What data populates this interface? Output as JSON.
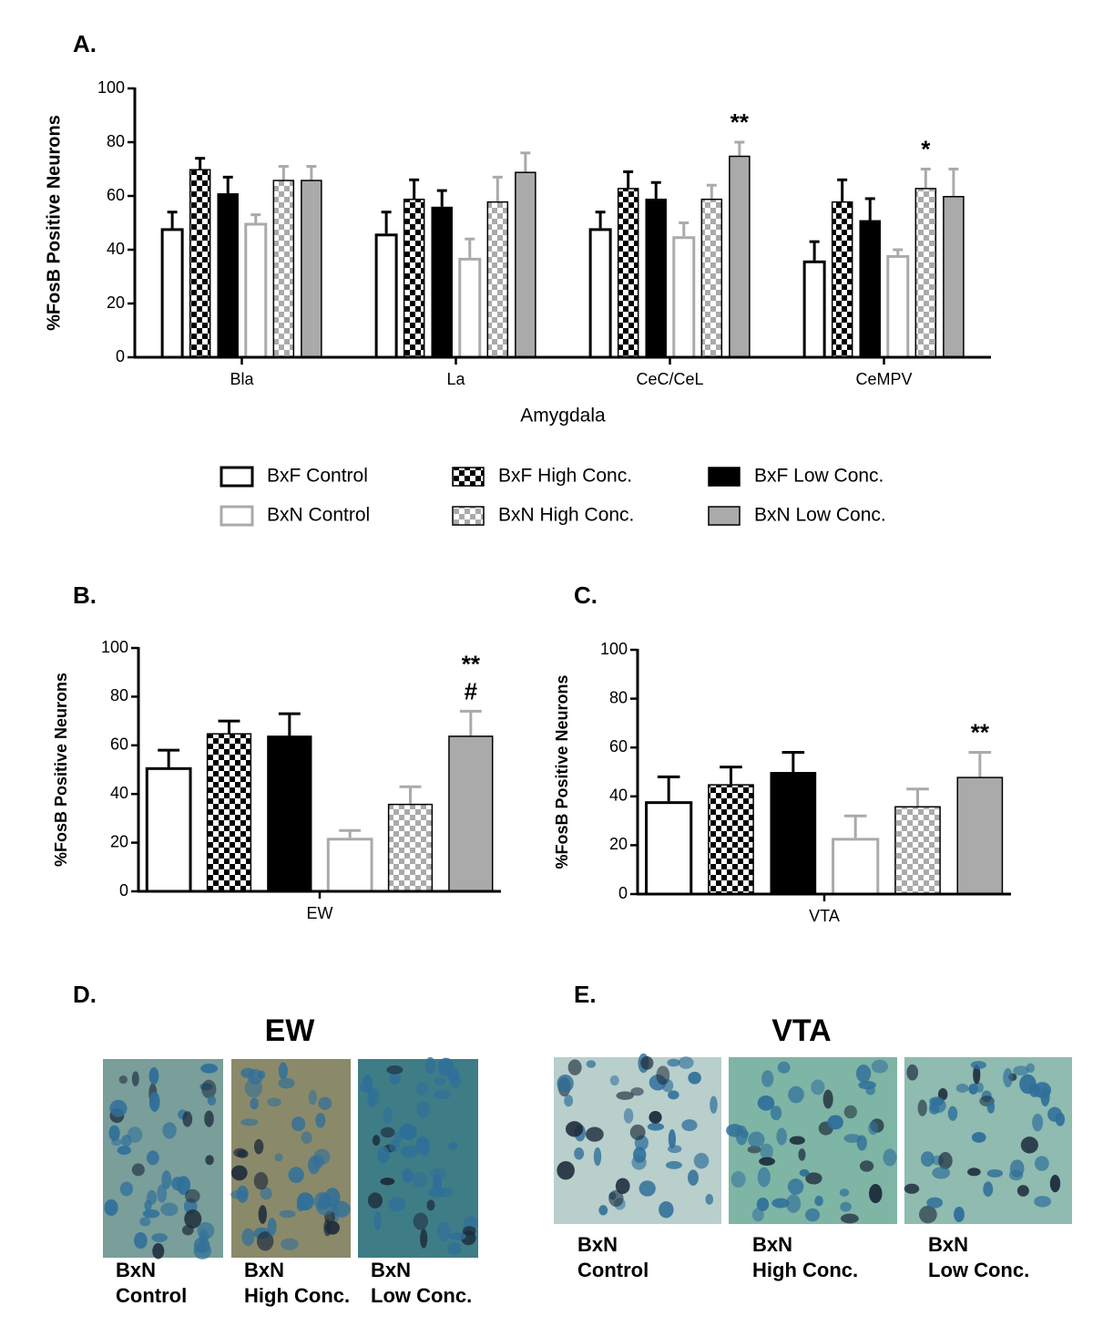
{
  "chart_data": [
    {
      "type": "bar",
      "panel": "A.",
      "ylabel": "%FosB Positive Neurons",
      "xlabel": "Amygdala",
      "categories": [
        "Bla",
        "La",
        "CeC/CeL",
        "CeMPV"
      ],
      "ylim": [
        0,
        100
      ],
      "yticks": [
        0,
        20,
        40,
        60,
        80,
        100
      ],
      "legend": "below",
      "series": [
        {
          "name": "BxF Control",
          "color": "#000000",
          "style": "outline",
          "values": [
            48,
            46,
            48,
            36
          ],
          "errors": [
            6,
            8,
            6,
            7
          ]
        },
        {
          "name": "BxF High Conc.",
          "color": "#000000",
          "style": "checker",
          "values": [
            70,
            59,
            63,
            58
          ],
          "errors": [
            4,
            7,
            6,
            8
          ]
        },
        {
          "name": "BxF Low Conc.",
          "color": "#000000",
          "style": "solid",
          "values": [
            61,
            56,
            59,
            51
          ],
          "errors": [
            6,
            6,
            6,
            8
          ]
        },
        {
          "name": "BxN Control",
          "color": "#aaaaaa",
          "style": "outline",
          "values": [
            50,
            37,
            45,
            38
          ],
          "errors": [
            3,
            7,
            5,
            2
          ]
        },
        {
          "name": "BxN High Conc.",
          "color": "#aaaaaa",
          "style": "checker",
          "values": [
            66,
            58,
            59,
            63
          ],
          "errors": [
            5,
            9,
            5,
            7
          ]
        },
        {
          "name": "BxN Low Conc.",
          "color": "#aaaaaa",
          "style": "solid",
          "values": [
            66,
            69,
            75,
            60
          ],
          "errors": [
            5,
            7,
            5,
            10
          ]
        }
      ],
      "annotations": [
        {
          "series": 5,
          "category": 2,
          "lines": [
            "**"
          ]
        },
        {
          "series": 4,
          "category": 3,
          "lines": [
            "*"
          ]
        }
      ]
    },
    {
      "type": "bar",
      "panel": "B.",
      "ylabel": "%FosB Positive Neurons",
      "categories": [
        "EW"
      ],
      "ylim": [
        0,
        100
      ],
      "yticks": [
        0,
        20,
        40,
        60,
        80,
        100
      ],
      "series": [
        {
          "color": "#000000",
          "style": "outline",
          "values": [
            51
          ],
          "errors": [
            7
          ]
        },
        {
          "color": "#000000",
          "style": "checker",
          "values": [
            65
          ],
          "errors": [
            5
          ]
        },
        {
          "color": "#000000",
          "style": "solid",
          "values": [
            64
          ],
          "errors": [
            9
          ]
        },
        {
          "color": "#aaaaaa",
          "style": "outline",
          "values": [
            22
          ],
          "errors": [
            3
          ]
        },
        {
          "color": "#aaaaaa",
          "style": "checker",
          "values": [
            36
          ],
          "errors": [
            7
          ]
        },
        {
          "color": "#aaaaaa",
          "style": "solid",
          "values": [
            64
          ],
          "errors": [
            10
          ]
        }
      ],
      "annotations": [
        {
          "series": 5,
          "category": 0,
          "lines": [
            "**",
            "#"
          ]
        }
      ]
    },
    {
      "type": "bar",
      "panel": "C.",
      "ylabel": "%FosB Positive Neurons",
      "categories": [
        "VTA"
      ],
      "ylim": [
        0,
        100
      ],
      "yticks": [
        0,
        20,
        40,
        60,
        80,
        100
      ],
      "series": [
        {
          "color": "#000000",
          "style": "outline",
          "values": [
            38
          ],
          "errors": [
            10
          ]
        },
        {
          "color": "#000000",
          "style": "checker",
          "values": [
            45
          ],
          "errors": [
            7
          ]
        },
        {
          "color": "#000000",
          "style": "solid",
          "values": [
            50
          ],
          "errors": [
            8
          ]
        },
        {
          "color": "#aaaaaa",
          "style": "outline",
          "values": [
            23
          ],
          "errors": [
            9
          ]
        },
        {
          "color": "#aaaaaa",
          "style": "checker",
          "values": [
            36
          ],
          "errors": [
            7
          ]
        },
        {
          "color": "#aaaaaa",
          "style": "solid",
          "values": [
            48
          ],
          "errors": [
            10
          ]
        }
      ],
      "annotations": [
        {
          "series": 5,
          "category": 0,
          "lines": [
            "**"
          ]
        }
      ]
    }
  ],
  "panels": [
    {
      "label": "D.",
      "title": "EW",
      "captions": [
        [
          "BxN",
          "Control"
        ],
        [
          "BxN",
          "High Conc."
        ],
        [
          "BxN",
          "Low Conc."
        ]
      ]
    },
    {
      "label": "E.",
      "title": "VTA",
      "captions": [
        [
          "BxN",
          "Control"
        ],
        [
          "BxN",
          "High Conc."
        ],
        [
          "BxN",
          "Low Conc."
        ]
      ]
    }
  ]
}
